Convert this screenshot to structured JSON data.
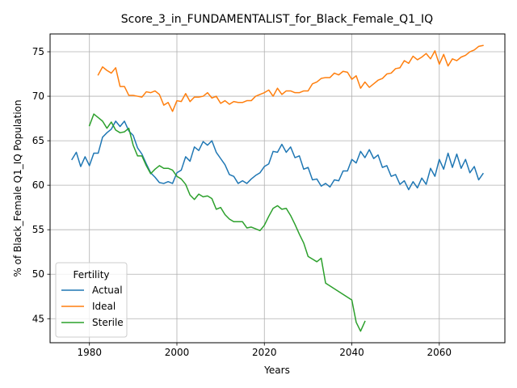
{
  "chart_data": {
    "type": "line",
    "title": "Score_3_in_FUNDAMENTALIST_for_Black_Female_Q1_IQ",
    "xlabel": "Years",
    "ylabel": "% of Black_Female Q1_IQ Population",
    "xlim": [
      1971,
      2075
    ],
    "ylim": [
      42.3,
      77.0
    ],
    "xticks": [
      1980,
      2000,
      2020,
      2040,
      2060
    ],
    "xtick_labels": [
      "1980",
      "2000",
      "2020",
      "2040",
      "2060"
    ],
    "yticks": [
      45,
      50,
      55,
      60,
      65,
      70,
      75
    ],
    "ytick_labels": [
      "45",
      "50",
      "55",
      "60",
      "65",
      "70",
      "75"
    ],
    "grid": true,
    "legend": {
      "title": "Fertility",
      "placement": "lower-left"
    },
    "series": [
      {
        "name": "Actual",
        "color": "#1f77b4",
        "x": [
          1976,
          1977,
          1978,
          1979,
          1980,
          1981,
          1982,
          1983,
          1984,
          1985,
          1986,
          1987,
          1988,
          1989,
          1990,
          1991,
          1992,
          1993,
          1994,
          1995,
          1996,
          1997,
          1998,
          1999,
          2000,
          2001,
          2002,
          2003,
          2004,
          2005,
          2006,
          2007,
          2008,
          2009,
          2010,
          2011,
          2012,
          2013,
          2014,
          2015,
          2016,
          2017,
          2018,
          2019,
          2020,
          2021,
          2022,
          2023,
          2024,
          2025,
          2026,
          2027,
          2028,
          2029,
          2030,
          2031,
          2032,
          2033,
          2034,
          2035,
          2036,
          2037,
          2038,
          2039,
          2040,
          2041,
          2042,
          2043,
          2044,
          2045,
          2046,
          2047,
          2048,
          2049,
          2050,
          2051,
          2052,
          2053,
          2054,
          2055,
          2056,
          2057,
          2058,
          2059,
          2060,
          2061,
          2062,
          2063,
          2064,
          2065,
          2066,
          2067,
          2068,
          2069,
          2070
        ],
        "y": [
          62.9,
          63.7,
          62.1,
          63.2,
          62.2,
          63.6,
          63.6,
          65.4,
          65.9,
          66.3,
          67.2,
          66.6,
          67.2,
          66.1,
          65.6,
          64.2,
          63.5,
          62.4,
          61.4,
          60.9,
          60.3,
          60.2,
          60.4,
          60.2,
          61.4,
          61.7,
          63.2,
          62.7,
          64.3,
          63.9,
          64.9,
          64.5,
          65.0,
          63.7,
          63.0,
          62.3,
          61.2,
          61.0,
          60.2,
          60.5,
          60.2,
          60.7,
          61.1,
          61.4,
          62.1,
          62.4,
          63.8,
          63.7,
          64.6,
          63.7,
          64.3,
          63.1,
          63.3,
          61.8,
          62.0,
          60.6,
          60.7,
          59.9,
          60.2,
          59.8,
          60.6,
          60.5,
          61.6,
          61.6,
          62.9,
          62.5,
          63.8,
          63.1,
          64.0,
          63.0,
          63.4,
          62.0,
          62.2,
          61.0,
          61.2,
          60.1,
          60.5,
          59.5,
          60.4,
          59.7,
          60.8,
          60.1,
          61.9,
          61.0,
          62.9,
          61.8,
          63.6,
          62.0,
          63.5,
          61.9,
          62.9,
          61.4,
          62.1,
          60.6,
          61.3
        ]
      },
      {
        "name": "Ideal",
        "color": "#ff7f0e",
        "x": [
          1982,
          1983,
          1984,
          1985,
          1986,
          1987,
          1988,
          1989,
          1990,
          1991,
          1992,
          1993,
          1994,
          1995,
          1996,
          1997,
          1998,
          1999,
          2000,
          2001,
          2002,
          2003,
          2004,
          2005,
          2006,
          2007,
          2008,
          2009,
          2010,
          2011,
          2012,
          2013,
          2014,
          2015,
          2016,
          2017,
          2018,
          2019,
          2020,
          2021,
          2022,
          2023,
          2024,
          2025,
          2026,
          2027,
          2028,
          2029,
          2030,
          2031,
          2032,
          2033,
          2034,
          2035,
          2036,
          2037,
          2038,
          2039,
          2040,
          2041,
          2042,
          2043,
          2044,
          2045,
          2046,
          2047,
          2048,
          2049,
          2050,
          2051,
          2052,
          2053,
          2054,
          2055,
          2056,
          2057,
          2058,
          2059,
          2060,
          2061,
          2062,
          2063,
          2064,
          2065,
          2066,
          2067,
          2068,
          2069,
          2070
        ],
        "y": [
          72.4,
          73.3,
          72.9,
          72.6,
          73.2,
          71.1,
          71.1,
          70.1,
          70.1,
          70.0,
          69.9,
          70.5,
          70.4,
          70.6,
          70.2,
          69.0,
          69.3,
          68.3,
          69.5,
          69.4,
          70.3,
          69.4,
          69.9,
          69.9,
          70.0,
          70.4,
          69.8,
          70.0,
          69.2,
          69.5,
          69.1,
          69.4,
          69.3,
          69.3,
          69.5,
          69.5,
          70.0,
          70.2,
          70.4,
          70.7,
          70.0,
          70.9,
          70.2,
          70.6,
          70.6,
          70.4,
          70.4,
          70.6,
          70.6,
          71.4,
          71.6,
          72.0,
          72.1,
          72.1,
          72.6,
          72.4,
          72.8,
          72.7,
          71.9,
          72.3,
          70.9,
          71.6,
          71.0,
          71.4,
          71.8,
          72.0,
          72.5,
          72.6,
          73.1,
          73.2,
          74.0,
          73.7,
          74.5,
          74.1,
          74.4,
          74.8,
          74.2,
          75.1,
          73.6,
          74.7,
          73.4,
          74.2,
          74.0,
          74.4,
          74.6,
          75.0,
          75.2,
          75.6,
          75.7
        ]
      },
      {
        "name": "Sterile",
        "color": "#2ca02c",
        "x": [
          1980,
          1981,
          1982,
          1983,
          1984,
          1985,
          1986,
          1987,
          1988,
          1989,
          1990,
          1991,
          1992,
          1993,
          1994,
          1995,
          1996,
          1997,
          1998,
          1999,
          2000,
          2001,
          2002,
          2003,
          2004,
          2005,
          2006,
          2007,
          2008,
          2009,
          2010,
          2011,
          2012,
          2013,
          2014,
          2015,
          2016,
          2017,
          2018,
          2019,
          2020,
          2021,
          2022,
          2023,
          2024,
          2025,
          2026,
          2027,
          2028,
          2029,
          2030,
          2031,
          2032,
          2033,
          2034,
          2040,
          2041,
          2042,
          2043
        ],
        "y": [
          66.7,
          68.0,
          67.6,
          67.2,
          66.4,
          67.1,
          66.2,
          65.9,
          66.0,
          66.4,
          64.5,
          63.3,
          63.3,
          62.2,
          61.3,
          61.8,
          62.2,
          61.9,
          61.9,
          61.7,
          61.0,
          60.7,
          60.1,
          58.9,
          58.4,
          59.0,
          58.7,
          58.8,
          58.5,
          57.3,
          57.5,
          56.7,
          56.2,
          55.9,
          55.9,
          55.9,
          55.2,
          55.3,
          55.1,
          54.9,
          55.5,
          56.5,
          57.4,
          57.7,
          57.3,
          57.4,
          56.6,
          55.6,
          54.5,
          53.5,
          52.0,
          51.7,
          51.4,
          51.8,
          49.0,
          47.1,
          44.6,
          43.6,
          44.7
        ]
      }
    ]
  }
}
